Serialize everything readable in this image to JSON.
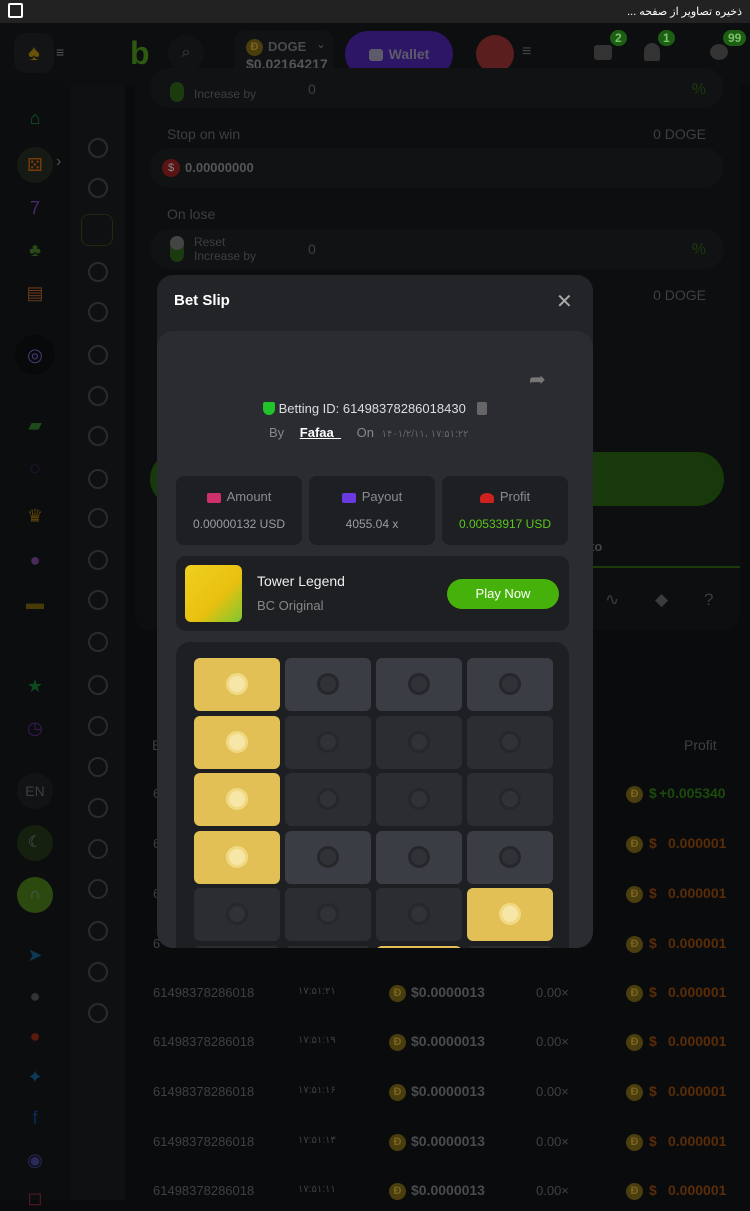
{
  "statusbar": {
    "text": "ذخیره تصاویر از صفحه ..."
  },
  "header": {
    "currency": "DOGE",
    "balance": "$0.02164217",
    "wallet_label": "Wallet",
    "badges": {
      "mail": "2",
      "notifications": "1",
      "chat": "99"
    }
  },
  "sidebar": {
    "language": "EN"
  },
  "settings": {
    "toggle1_label": "Increase by",
    "toggle1_value": "0",
    "percent": "%",
    "stop_on_win_label": "Stop on win",
    "stop_on_win_amount": "0 DOGE",
    "stop_on_win_value": "0.00000000",
    "on_lose_label": "On lose",
    "reset_label": "Reset",
    "increase_label": "Increase by",
    "on_lose_value": "0",
    "stop_on_loss_amount": "0 DOGE",
    "auto_text": "to"
  },
  "table": {
    "header_bet": "B",
    "header_profit": "Profit",
    "rows": [
      {
        "id": "6",
        "profit": "+0.005340",
        "win": true
      },
      {
        "id": "6",
        "profit": "0.000001"
      },
      {
        "id": "6",
        "profit": "0.000001"
      },
      {
        "id": "6",
        "profit": "0.000001"
      },
      {
        "id": "61498378286018",
        "time": "۱۷:۵۱:۲۱",
        "amount": "$0.0000013",
        "payout": "0.00×",
        "profit": "0.000001"
      },
      {
        "id": "61498378286018",
        "time": "۱۷:۵۱:۱۹",
        "amount": "$0.0000013",
        "payout": "0.00×",
        "profit": "0.000001"
      },
      {
        "id": "61498378286018",
        "time": "۱۷:۵۱:۱۶",
        "amount": "$0.0000013",
        "payout": "0.00×",
        "profit": "0.000001"
      },
      {
        "id": "61498378286018",
        "time": "۱۷:۵۱:۱۳",
        "amount": "$0.0000013",
        "payout": "0.00×",
        "profit": "0.000001"
      },
      {
        "id": "61498378286018",
        "time": "۱۷:۵۱:۱۱",
        "amount": "$0.0000013",
        "payout": "0.00×",
        "profit": "0.000001"
      }
    ]
  },
  "modal": {
    "title": "Bet Slip",
    "betting_id": "Betting ID: 61498378286018430",
    "by_label": "By",
    "user": "Fafaa_",
    "on_label": "On",
    "date": "۱۴۰۱/۲/۱۱، ۱۷:۵۱:۲۲",
    "amount_label": "Amount",
    "amount_value": "0.00000132 USD",
    "payout_label": "Payout",
    "payout_value": "4055.04 x",
    "profit_label": "Profit",
    "profit_value": "0.00533917 USD",
    "game_title": "Tower Legend",
    "game_subtitle": "BC Original",
    "play_label": "Play Now",
    "grid": [
      [
        "gold",
        "lt",
        "lt",
        "lt"
      ],
      [
        "gold",
        "dk",
        "dk",
        "dk"
      ],
      [
        "gold",
        "dk",
        "dk",
        "dk"
      ],
      [
        "gold",
        "lt",
        "lt",
        "lt"
      ],
      [
        "dk",
        "dk",
        "dk",
        "gold"
      ],
      [
        "dk",
        "dk",
        "gold",
        "dk"
      ]
    ]
  },
  "colors": {
    "accent": "#43b309",
    "wallet": "#3b1d8a",
    "profit": "#5bc51c",
    "loss": "#6a3a0c"
  }
}
